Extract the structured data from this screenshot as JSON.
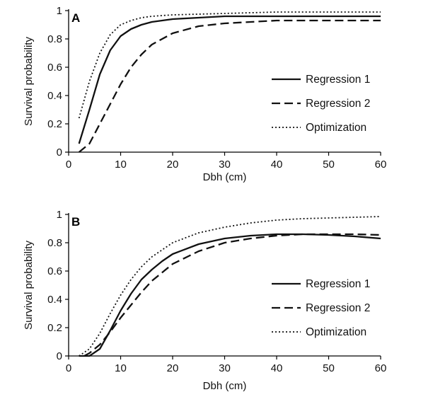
{
  "chart_data": [
    {
      "type": "line",
      "panel": "A",
      "xlabel": "Dbh (cm)",
      "ylabel": "Survival probability",
      "xlim": [
        0,
        60
      ],
      "ylim": [
        0,
        1
      ],
      "xticks": [
        "0",
        "10",
        "20",
        "30",
        "40",
        "50",
        "60"
      ],
      "yticks": [
        "0",
        "0.2",
        "0.4",
        "0.6",
        "0.8",
        "1"
      ],
      "legend_position": "lower-right",
      "series": [
        {
          "name": "Regression 1",
          "style": "solid",
          "x": [
            2,
            4,
            6,
            8,
            10,
            12,
            14,
            16,
            20,
            25,
            30,
            35,
            40,
            45,
            50,
            55,
            60
          ],
          "y": [
            0.06,
            0.3,
            0.55,
            0.72,
            0.82,
            0.87,
            0.9,
            0.92,
            0.94,
            0.95,
            0.96,
            0.96,
            0.96,
            0.96,
            0.96,
            0.96,
            0.96
          ]
        },
        {
          "name": "Regression 2",
          "style": "dashed",
          "x": [
            2,
            4,
            6,
            8,
            10,
            12,
            14,
            16,
            20,
            25,
            30,
            35,
            40,
            45,
            50,
            55,
            60
          ],
          "y": [
            0.0,
            0.06,
            0.2,
            0.34,
            0.48,
            0.6,
            0.69,
            0.76,
            0.84,
            0.89,
            0.91,
            0.92,
            0.93,
            0.93,
            0.93,
            0.93,
            0.93
          ]
        },
        {
          "name": "Optimization",
          "style": "dotted",
          "x": [
            2,
            4,
            6,
            8,
            10,
            12,
            14,
            16,
            20,
            25,
            30,
            35,
            40,
            45,
            50,
            55,
            60
          ],
          "y": [
            0.24,
            0.5,
            0.7,
            0.83,
            0.9,
            0.93,
            0.95,
            0.96,
            0.97,
            0.975,
            0.98,
            0.985,
            0.99,
            0.99,
            0.99,
            0.99,
            0.99
          ]
        }
      ]
    },
    {
      "type": "line",
      "panel": "B",
      "xlabel": "Dbh (cm)",
      "ylabel": "Survival probability",
      "xlim": [
        0,
        60
      ],
      "ylim": [
        0,
        1
      ],
      "xticks": [
        "0",
        "10",
        "20",
        "30",
        "40",
        "50",
        "60"
      ],
      "yticks": [
        "0",
        "0.2",
        "0.4",
        "0.6",
        "0.8",
        "1"
      ],
      "legend_position": "lower-right",
      "series": [
        {
          "name": "Regression 1",
          "style": "solid",
          "x": [
            2,
            4,
            6,
            8,
            10,
            12,
            14,
            16,
            18,
            20,
            25,
            30,
            35,
            40,
            45,
            50,
            55,
            60
          ],
          "y": [
            0.0,
            0.0,
            0.05,
            0.18,
            0.32,
            0.44,
            0.54,
            0.61,
            0.67,
            0.72,
            0.79,
            0.83,
            0.85,
            0.86,
            0.86,
            0.855,
            0.845,
            0.83
          ]
        },
        {
          "name": "Regression 2",
          "style": "dashed",
          "x": [
            3,
            4,
            6,
            8,
            10,
            12,
            14,
            16,
            18,
            20,
            25,
            30,
            35,
            40,
            45,
            50,
            55,
            60
          ],
          "y": [
            0.0,
            0.02,
            0.08,
            0.17,
            0.27,
            0.36,
            0.45,
            0.53,
            0.59,
            0.65,
            0.74,
            0.8,
            0.83,
            0.85,
            0.86,
            0.86,
            0.86,
            0.855
          ]
        },
        {
          "name": "Optimization",
          "style": "dotted",
          "x": [
            2,
            4,
            6,
            8,
            10,
            12,
            14,
            16,
            18,
            20,
            25,
            30,
            35,
            40,
            45,
            50,
            55,
            60
          ],
          "y": [
            0.0,
            0.05,
            0.16,
            0.3,
            0.43,
            0.54,
            0.63,
            0.7,
            0.75,
            0.8,
            0.87,
            0.91,
            0.94,
            0.96,
            0.97,
            0.975,
            0.98,
            0.985
          ]
        }
      ]
    }
  ]
}
